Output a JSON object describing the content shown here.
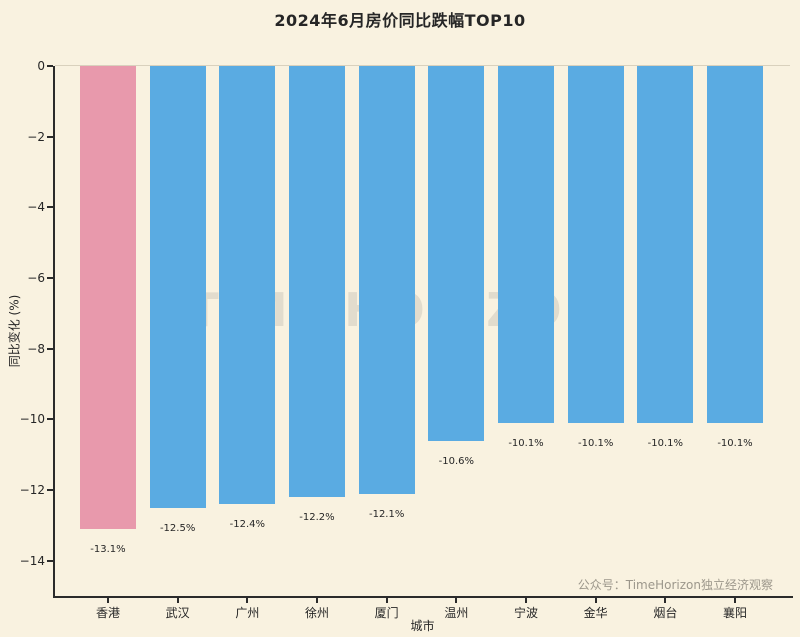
{
  "watermark": {
    "text": "TIME HORIZON"
  },
  "credit": {
    "text": "公众号：TimeHorizon独立经济观察"
  },
  "chart_data": {
    "type": "bar",
    "title": "2024年6月房价同比跌幅TOP10",
    "xlabel": "城市",
    "ylabel": "同比变化 (%)",
    "categories": [
      "香港",
      "武汉",
      "广州",
      "徐州",
      "厦门",
      "温州",
      "宁波",
      "金华",
      "烟台",
      "襄阳"
    ],
    "values": [
      -13.1,
      -12.5,
      -12.4,
      -12.2,
      -12.1,
      -10.6,
      -10.1,
      -10.1,
      -10.1,
      -10.1
    ],
    "value_labels": [
      "-13.1%",
      "-12.5%",
      "-12.4%",
      "-12.2%",
      "-12.1%",
      "-10.6%",
      "-10.1%",
      "-10.1%",
      "-10.1%",
      "-10.1%"
    ],
    "bar_colors": [
      "#e899ac",
      "#5aabe2",
      "#5aabe2",
      "#5aabe2",
      "#5aabe2",
      "#5aabe2",
      "#5aabe2",
      "#5aabe2",
      "#5aabe2",
      "#5aabe2"
    ],
    "highlight_index": 0,
    "ylim": [
      -15,
      0
    ],
    "yticks": [
      0,
      -2,
      -4,
      -6,
      -8,
      -10,
      -12,
      -14
    ],
    "ytick_labels": [
      "0",
      "−2",
      "−4",
      "−6",
      "−8",
      "−10",
      "−12",
      "−14"
    ],
    "grid": false,
    "legend": "none",
    "colors": {
      "background": "#f9f2e0",
      "axis": "#2b2b2b",
      "highlight_bar": "#e899ac",
      "default_bar": "#5aabe2",
      "credit_text": "#9c978b",
      "watermark": "rgba(105,105,105,0.16)"
    }
  }
}
